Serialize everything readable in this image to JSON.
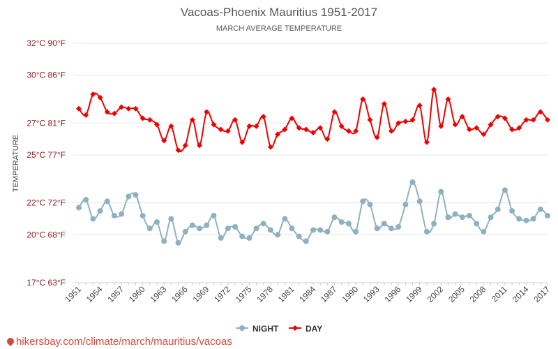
{
  "chart_data": {
    "type": "line",
    "title": "Vacoas-Phoenix Mauritius 1951-2017",
    "subtitle": "MARCH AVERAGE TEMPERATURE",
    "ylabel": "TEMPERATURE",
    "ylim": [
      17,
      32
    ],
    "y_ticks": [
      {
        "value": 17,
        "label": "17°C 63°F"
      },
      {
        "value": 20,
        "label": "20°C 68°F"
      },
      {
        "value": 22,
        "label": "22°C 72°F"
      },
      {
        "value": 25,
        "label": "25°C 77°F"
      },
      {
        "value": 27,
        "label": "27°C 81°F"
      },
      {
        "value": 30,
        "label": "30°C 86°F"
      },
      {
        "value": 32,
        "label": "32°C 90°F"
      }
    ],
    "x_tick_labels": [
      "1951",
      "1954",
      "1957",
      "1960",
      "1963",
      "1966",
      "1969",
      "1972",
      "1975",
      "1978",
      "1981",
      "1984",
      "1987",
      "1990",
      "1993",
      "1996",
      "1999",
      "2002",
      "2005",
      "2008",
      "2011",
      "2014",
      "2017"
    ],
    "x_start": 1951,
    "x_end": 2017,
    "grid": true,
    "legend_position": "bottom",
    "series": [
      {
        "name": "NIGHT",
        "color": "#8fb1bf",
        "marker": "circle",
        "values": [
          21.7,
          22.2,
          21.0,
          21.5,
          22.1,
          21.2,
          21.3,
          22.4,
          22.5,
          21.2,
          20.4,
          20.8,
          19.6,
          21.0,
          19.5,
          20.2,
          20.6,
          20.4,
          20.6,
          21.2,
          19.8,
          20.4,
          20.5,
          19.9,
          19.8,
          20.4,
          20.7,
          20.3,
          20.0,
          21.0,
          20.4,
          19.9,
          19.6,
          20.3,
          20.3,
          20.2,
          21.1,
          20.8,
          20.7,
          20.2,
          22.1,
          21.9,
          20.4,
          20.7,
          20.4,
          20.5,
          21.9,
          23.3,
          22.1,
          20.2,
          20.7,
          22.7,
          21.1,
          21.3,
          21.1,
          21.2,
          20.7,
          20.2,
          21.1,
          21.6,
          22.8,
          21.5,
          21.0,
          20.9,
          21.0,
          21.6,
          21.2
        ]
      },
      {
        "name": "DAY",
        "color": "#ee0000",
        "marker": "diamond",
        "values": [
          27.9,
          27.5,
          28.8,
          28.6,
          27.7,
          27.6,
          28.0,
          27.9,
          27.9,
          27.3,
          27.2,
          26.9,
          25.9,
          26.8,
          25.3,
          25.6,
          27.2,
          25.6,
          27.7,
          26.9,
          26.6,
          26.5,
          27.2,
          25.8,
          26.8,
          26.8,
          27.4,
          25.5,
          26.3,
          26.6,
          27.3,
          26.7,
          26.6,
          26.4,
          26.7,
          26.0,
          27.7,
          26.8,
          26.5,
          26.5,
          28.5,
          27.2,
          26.1,
          28.2,
          26.5,
          27.0,
          27.1,
          27.2,
          28.1,
          25.8,
          29.1,
          26.8,
          28.5,
          26.9,
          27.4,
          26.6,
          26.7,
          26.3,
          26.9,
          27.4,
          27.3,
          26.6,
          26.7,
          27.2,
          27.2,
          27.7,
          27.2
        ]
      }
    ]
  },
  "watermark": {
    "text": "hikersbay.com/climate/march/mauritius/vacoas"
  }
}
